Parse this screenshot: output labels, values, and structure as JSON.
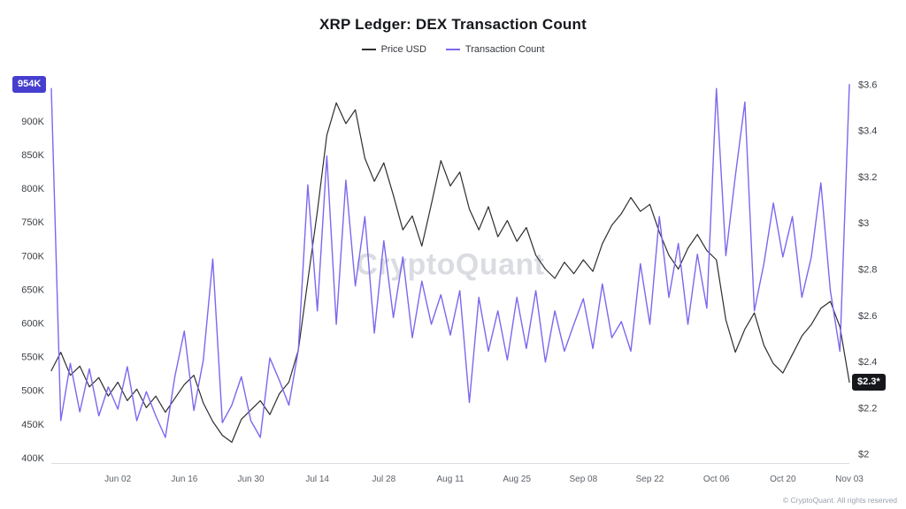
{
  "title": "XRP Ledger: DEX Transaction Count",
  "watermark": "CryptoQuant",
  "footer": "© CryptoQuant. All rights reserved",
  "legend": [
    {
      "label": "Price USD",
      "color": "#2e2e2e"
    },
    {
      "label": "Transaction Count",
      "color": "#7B68EE"
    }
  ],
  "badges": {
    "left": {
      "text": "954K",
      "bg": "#4united63ECF",
      "value": 954
    },
    "right": {
      "text": "$2.3*",
      "bg": "#15171c",
      "value": 2.31
    }
  },
  "chart_data": {
    "type": "line",
    "title": "XRP Ledger: DEX Transaction Count",
    "legend_position": "top",
    "grid": false,
    "x_ticks": {
      "labels": [
        "Jun 02",
        "Jun 16",
        "Jun 30",
        "Jul 14",
        "Jul 28",
        "Aug 11",
        "Aug 25",
        "Sep 08",
        "Sep 22",
        "Oct 06",
        "Oct 20",
        "Nov 03"
      ],
      "indices": [
        7,
        14,
        21,
        28,
        35,
        42,
        49,
        56,
        63,
        70,
        77,
        84
      ]
    },
    "left_axis": {
      "title": "Transaction Count",
      "unit": "K",
      "domain": [
        392,
        968
      ],
      "tick_values": [
        900,
        850,
        800,
        750,
        700,
        650,
        600,
        550,
        500,
        450,
        400
      ],
      "tick_labels": [
        "900K",
        "850K",
        "800K",
        "750K",
        "700K",
        "650K",
        "600K",
        "550K",
        "500K",
        "450K",
        "400K"
      ],
      "latest_value": 954,
      "latest_label": "954K"
    },
    "right_axis": {
      "title": "Price USD",
      "domain": [
        1.96,
        3.64
      ],
      "tick_values": [
        3.6,
        3.4,
        3.2,
        3.0,
        2.8,
        2.6,
        2.4,
        2.2,
        2.0
      ],
      "tick_labels": [
        "$3.6",
        "$3.4",
        "$3.2",
        "$3",
        "$2.8",
        "$2.6",
        "$2.4",
        "$2.2",
        "$2"
      ],
      "latest_value": 2.31,
      "latest_label": "$2.3*"
    },
    "series": [
      {
        "name": "Price USD",
        "axis": "right",
        "color": "#2e2e2e",
        "values": [
          2.36,
          2.44,
          2.34,
          2.38,
          2.29,
          2.33,
          2.25,
          2.31,
          2.23,
          2.28,
          2.2,
          2.25,
          2.18,
          2.24,
          2.3,
          2.34,
          2.22,
          2.14,
          2.08,
          2.05,
          2.15,
          2.19,
          2.23,
          2.17,
          2.26,
          2.31,
          2.45,
          2.75,
          3.05,
          3.38,
          3.52,
          3.43,
          3.49,
          3.28,
          3.18,
          3.26,
          3.12,
          2.97,
          3.03,
          2.9,
          3.08,
          3.27,
          3.16,
          3.22,
          3.06,
          2.97,
          3.07,
          2.94,
          3.01,
          2.92,
          2.98,
          2.86,
          2.8,
          2.76,
          2.83,
          2.78,
          2.84,
          2.79,
          2.91,
          2.99,
          3.04,
          3.11,
          3.05,
          3.08,
          2.96,
          2.86,
          2.8,
          2.89,
          2.95,
          2.88,
          2.84,
          2.58,
          2.44,
          2.54,
          2.61,
          2.47,
          2.39,
          2.35,
          2.43,
          2.51,
          2.56,
          2.63,
          2.66,
          2.55,
          2.31
        ]
      },
      {
        "name": "Transaction Count",
        "axis": "left",
        "color": "#7B68EE",
        "values": [
          948,
          455,
          540,
          468,
          532,
          462,
          505,
          472,
          535,
          455,
          498,
          462,
          430,
          520,
          588,
          470,
          545,
          695,
          452,
          478,
          520,
          455,
          430,
          548,
          515,
          478,
          560,
          805,
          618,
          848,
          598,
          812,
          655,
          758,
          585,
          722,
          608,
          698,
          578,
          662,
          598,
          642,
          582,
          648,
          482,
          638,
          558,
          618,
          545,
          638,
          562,
          648,
          542,
          618,
          558,
          598,
          636,
          562,
          658,
          578,
          602,
          558,
          688,
          598,
          758,
          638,
          718,
          598,
          702,
          622,
          948,
          700,
          818,
          928,
          618,
          688,
          778,
          698,
          758,
          638,
          698,
          808,
          648,
          558,
          954
        ]
      }
    ]
  }
}
